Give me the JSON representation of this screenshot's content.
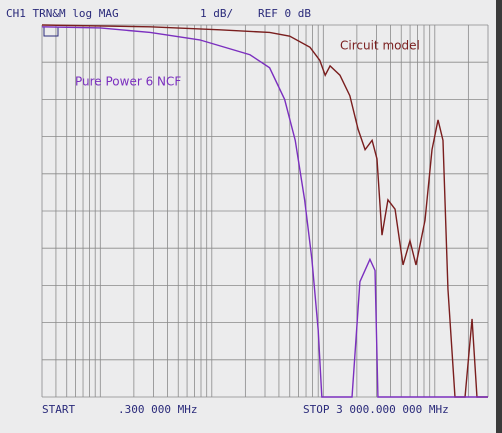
{
  "chart_data": {
    "type": "line",
    "header": {
      "channel": "CH1 TRN&M log MAG",
      "scale": "1 dB/",
      "reference": "REF 0 dB"
    },
    "footer": {
      "start": "START",
      "start_value": ".300 000 MHz",
      "stop": "STOP 3 000.000 000 MHz"
    },
    "annotations": [
      "Circuit model",
      "Pure Power 6 NCF"
    ],
    "log_x": true,
    "grid": true,
    "xlim": [
      0.3,
      3000
    ],
    "ylim": [
      -10,
      0
    ],
    "xticks": [
      0.3,
      0.4,
      0.5,
      0.6,
      0.7,
      0.8,
      0.9,
      1,
      2,
      3,
      4,
      5,
      6,
      7,
      8,
      9,
      10,
      20,
      30,
      40,
      50,
      60,
      70,
      80,
      90,
      100,
      200,
      300,
      400,
      500,
      600,
      700,
      800,
      900,
      1000,
      2000,
      3000
    ],
    "yticks": [
      -10,
      -9,
      -8,
      -7,
      -6,
      -5,
      -4,
      -3,
      -2,
      -1,
      0
    ],
    "series": [
      {
        "color": "#7a1e1e",
        "x": [
          0.3,
          2.8,
          11.8,
          33,
          50,
          76,
          93,
          104,
          115,
          141,
          173,
          205,
          237,
          274,
          303,
          336,
          380,
          440,
          519,
          599,
          678,
          817,
          944,
          1069,
          1184,
          1312,
          1517,
          1867,
          2158,
          2389,
          3000
        ],
        "values": [
          0,
          -0.05,
          -0.13,
          -0.2,
          -0.3,
          -0.6,
          -0.95,
          -1.35,
          -1.1,
          -1.35,
          -1.9,
          -2.8,
          -3.35,
          -3.1,
          -3.6,
          -5.65,
          -4.7,
          -4.95,
          -6.45,
          -5.8,
          -6.45,
          -5.25,
          -3.35,
          -2.55,
          -3.1,
          -7.1,
          -10,
          -10,
          -7.9,
          -10,
          -10
        ]
      },
      {
        "color": "#7b2fbf",
        "x": [
          0.3,
          1,
          2.8,
          7.8,
          22,
          33,
          45,
          56,
          68,
          79,
          90,
          97,
          181,
          213,
          262,
          291,
          309,
          3000
        ],
        "values": [
          -0.05,
          -0.08,
          -0.2,
          -0.4,
          -0.8,
          -1.15,
          -2.0,
          -3.1,
          -4.7,
          -6.3,
          -8.2,
          -10,
          -10,
          -6.9,
          -6.3,
          -6.6,
          -10,
          -10
        ]
      }
    ]
  }
}
